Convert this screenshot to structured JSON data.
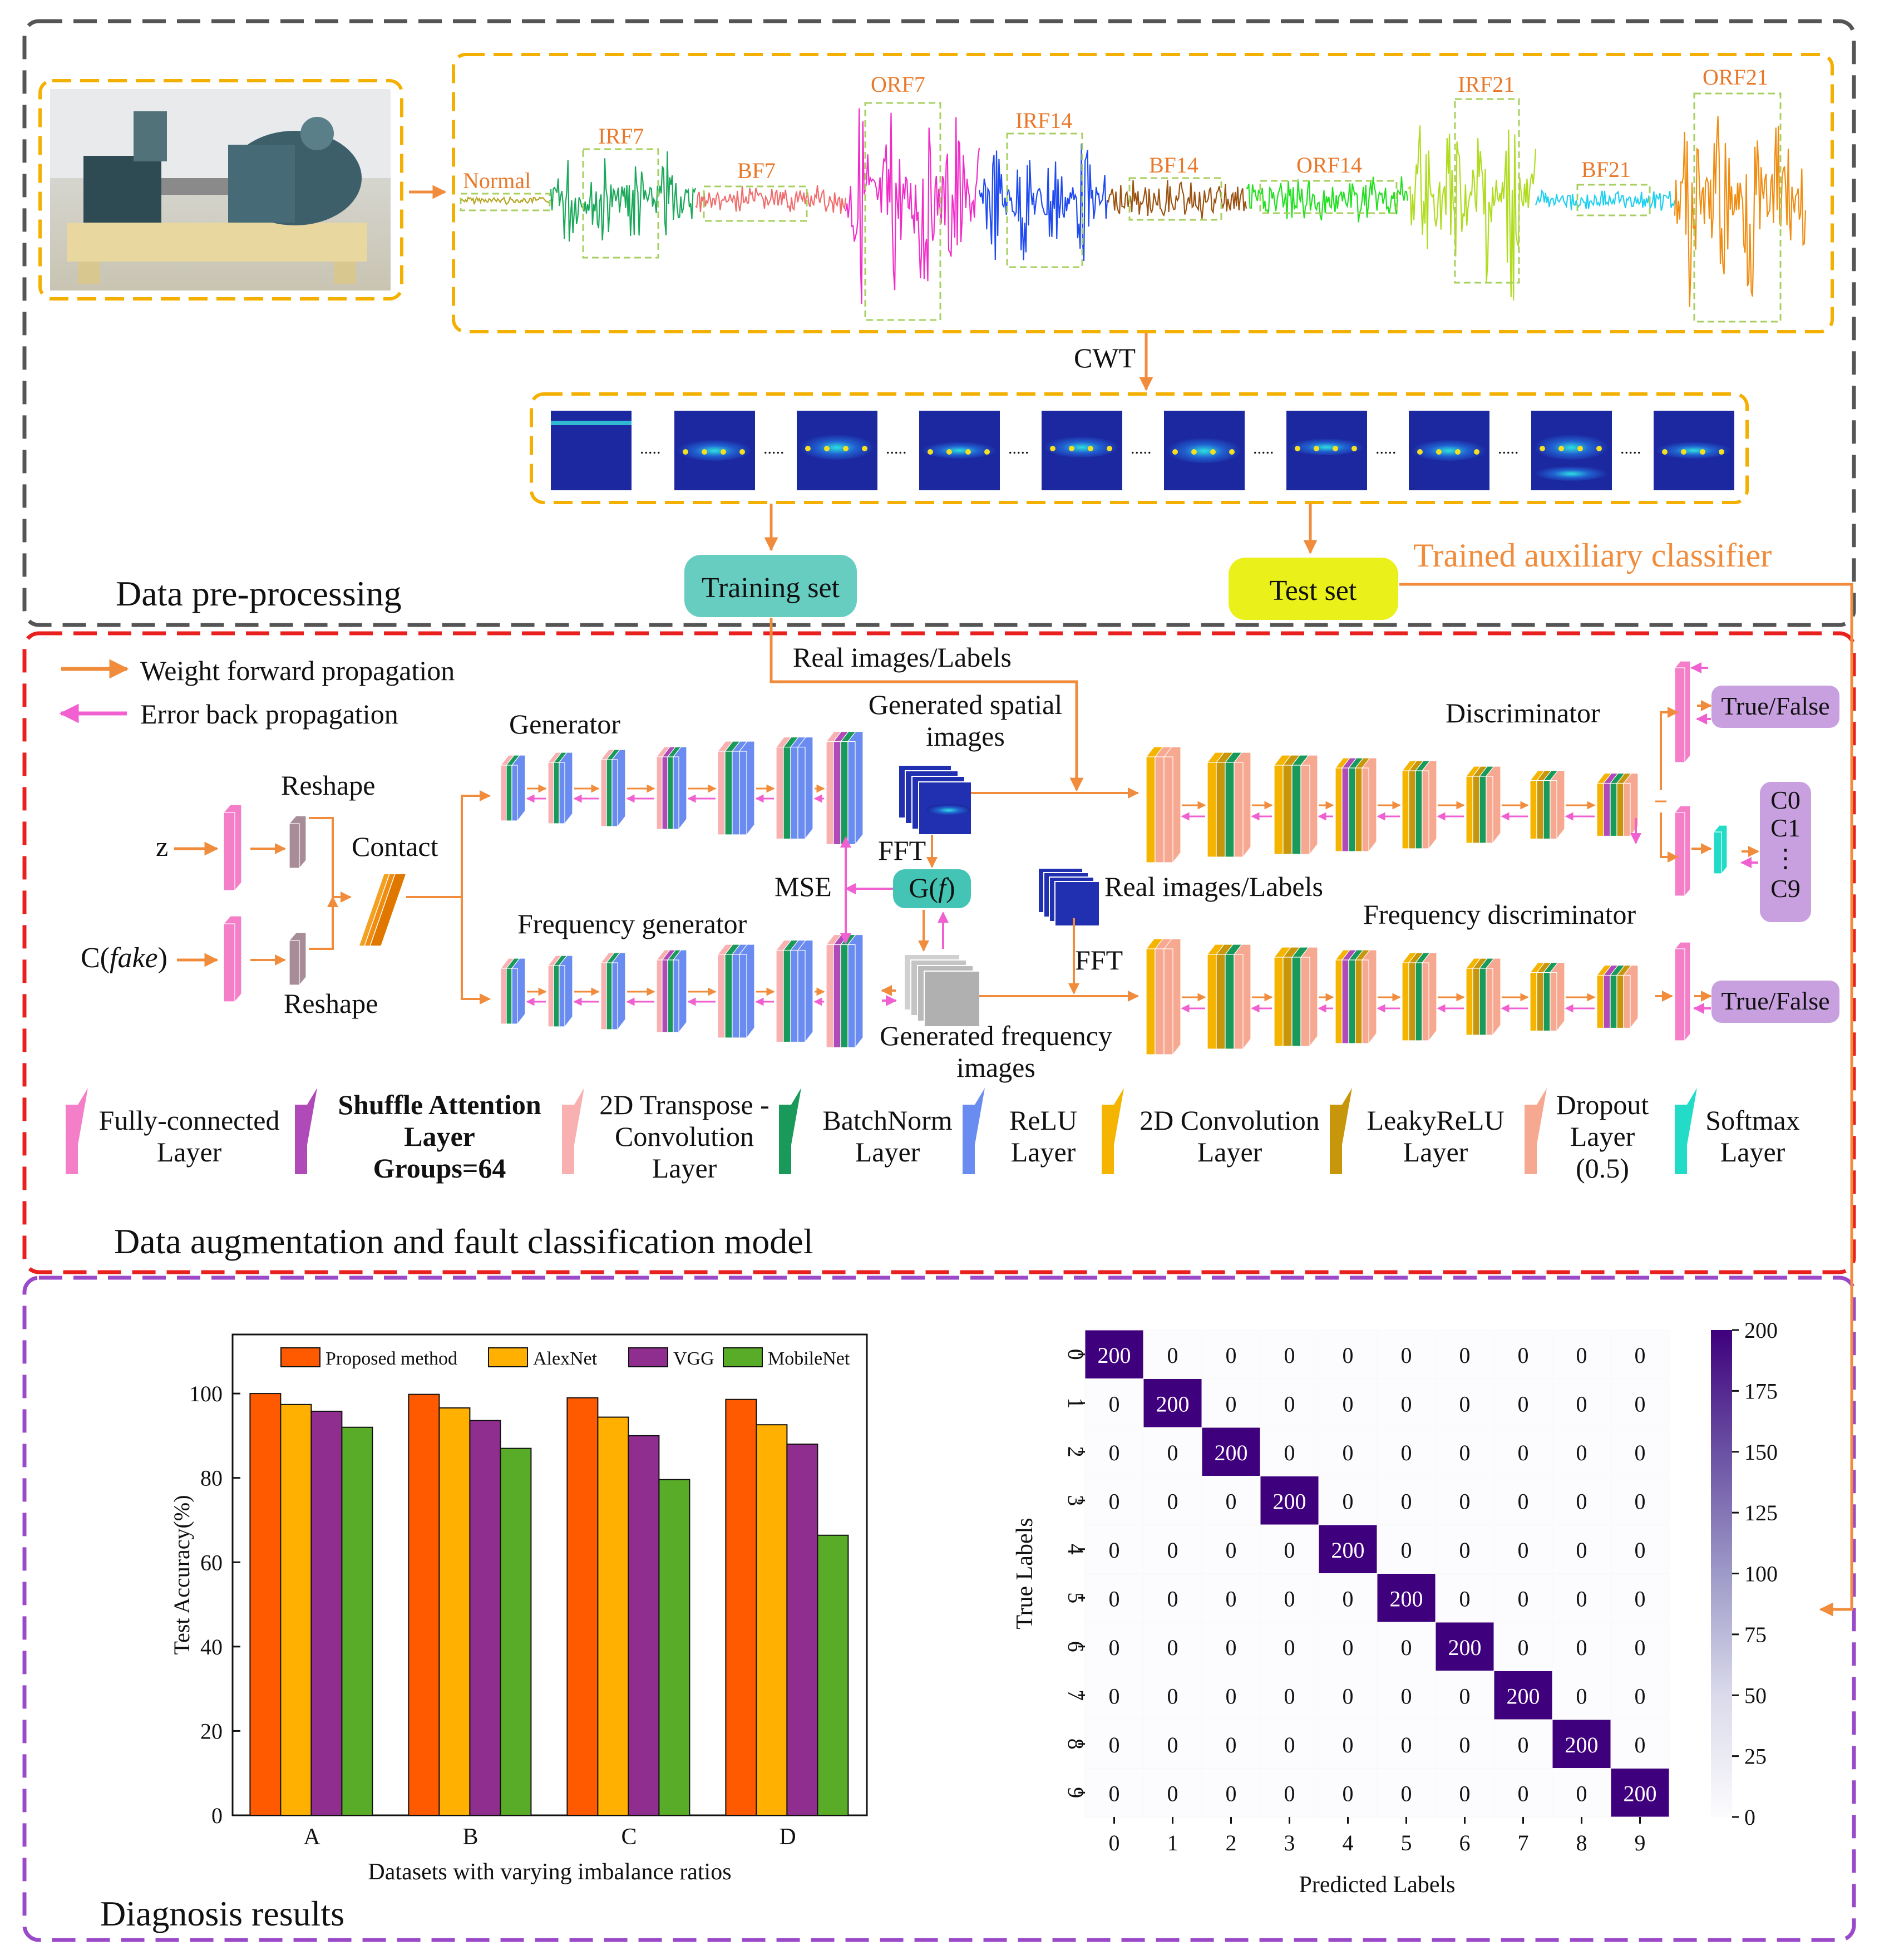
{
  "sections": {
    "preprocessing": "Data pre-processing",
    "augmentation": "Data  augmentation and fault classification model",
    "diagnosis": "Diagnosis results"
  },
  "signals": {
    "labels": [
      "Normal",
      "IRF7",
      "BF7",
      "ORF7",
      "IRF14",
      "BF14",
      "ORF14",
      "IRF21",
      "BF21",
      "ORF21"
    ],
    "colors": [
      "#b5a520",
      "#1aa85a",
      "#f06c6c",
      "#f02cc8",
      "#1e4af0",
      "#9a5210",
      "#22e020",
      "#b0dc20",
      "#1ed0f0",
      "#f08c10"
    ],
    "label_color": "#e8782a",
    "box_color": "#a8d060"
  },
  "cwt_label": "CWT",
  "training_set": "Training set",
  "test_set": "Test set",
  "trained_aux": "Trained auxiliary classifier",
  "legend_arrows": {
    "forward": "Weight forward propagation",
    "backward": "Error back propagation"
  },
  "net": {
    "real_labels_top": "Real images/Labels",
    "generator": "Generator",
    "gen_spatial": "Generated spatial images",
    "discriminator": "Discriminator",
    "true_false_1": "True/False",
    "true_false_2": "True/False",
    "classes": [
      "C0",
      "C1",
      "⋮",
      "C9"
    ],
    "reshape_1": "Reshape",
    "reshape_2": "Reshape",
    "z": "z",
    "c_fake_prefix": "C(",
    "c_fake_italic": "fake",
    "c_fake_suffix": ")",
    "contact": "Contact",
    "fft_1": "FFT",
    "mse": "MSE",
    "gf_prefix": "G(",
    "gf_italic": "f",
    "gf_suffix": ")",
    "real_labels_mid": "Real images/Labels",
    "fft_2": "FFT",
    "freq_gen": "Frequency generator",
    "freq_disc": "Frequency discriminator",
    "gen_freq": "Generated frequency images"
  },
  "layer_legend": [
    {
      "lines": [
        "Fully-connected",
        "Layer"
      ],
      "color": "#f47fc8",
      "bold": false
    },
    {
      "lines": [
        "Shuffle Attention",
        "Layer",
        "Groups=64"
      ],
      "color": "#b04ab8",
      "bold": true
    },
    {
      "lines": [
        "2D Transpose -",
        "Convolution",
        "Layer"
      ],
      "color": "#f8b0b0",
      "bold": false
    },
    {
      "lines": [
        "BatchNorm",
        "Layer"
      ],
      "color": "#1a9a5a",
      "bold": false
    },
    {
      "lines": [
        "ReLU",
        "Layer"
      ],
      "color": "#6a8cf0",
      "bold": false
    },
    {
      "lines": [
        "2D Convolution",
        "Layer"
      ],
      "color": "#f4b400",
      "bold": false
    },
    {
      "lines": [
        "LeakyReLU",
        "Layer"
      ],
      "color": "#c8960a",
      "bold": false
    },
    {
      "lines": [
        "Dropout",
        "Layer",
        "(0.5)"
      ],
      "color": "#f6a890",
      "bold": false
    },
    {
      "lines": [
        "Softmax",
        "Layer"
      ],
      "color": "#22dcc8",
      "bold": false
    }
  ],
  "bar_chart_data": {
    "type": "bar",
    "title": "",
    "categories": [
      "A",
      "B",
      "C",
      "D"
    ],
    "series": [
      {
        "name": "Proposed method",
        "values": [
          100,
          99.8,
          99,
          98.6
        ],
        "color": "#ff5a00"
      },
      {
        "name": "AlexNet",
        "values": [
          97.4,
          96.6,
          94.4,
          92.6
        ],
        "color": "#ffb000"
      },
      {
        "name": "VGG",
        "values": [
          95.8,
          93.6,
          90,
          88
        ],
        "color": "#902e90"
      },
      {
        "name": "MobileNet",
        "values": [
          92,
          87,
          79.6,
          66.4
        ],
        "color": "#58ac28"
      }
    ],
    "xlabel": "Datasets with varying imbalance ratios",
    "ylabel": "Test Accuracy(%)",
    "ylim": [
      0,
      114
    ],
    "yticks": [
      "0",
      "20",
      "40",
      "60",
      "80",
      "100"
    ]
  },
  "chart_data": {
    "type": "heatmap",
    "title": "",
    "xlabel": "Predicted Labels",
    "ylabel": "True Labels",
    "x_ticks": [
      "0",
      "1",
      "2",
      "3",
      "4",
      "5",
      "6",
      "7",
      "8",
      "9"
    ],
    "y_ticks": [
      "0",
      "1",
      "2",
      "3",
      "4",
      "5",
      "6",
      "7",
      "8",
      "9"
    ],
    "matrix": [
      [
        200,
        0,
        0,
        0,
        0,
        0,
        0,
        0,
        0,
        0
      ],
      [
        0,
        200,
        0,
        0,
        0,
        0,
        0,
        0,
        0,
        0
      ],
      [
        0,
        0,
        200,
        0,
        0,
        0,
        0,
        0,
        0,
        0
      ],
      [
        0,
        0,
        0,
        200,
        0,
        0,
        0,
        0,
        0,
        0
      ],
      [
        0,
        0,
        0,
        0,
        200,
        0,
        0,
        0,
        0,
        0
      ],
      [
        0,
        0,
        0,
        0,
        0,
        200,
        0,
        0,
        0,
        0
      ],
      [
        0,
        0,
        0,
        0,
        0,
        0,
        200,
        0,
        0,
        0
      ],
      [
        0,
        0,
        0,
        0,
        0,
        0,
        0,
        200,
        0,
        0
      ],
      [
        0,
        0,
        0,
        0,
        0,
        0,
        0,
        0,
        200,
        0
      ],
      [
        0,
        0,
        0,
        0,
        0,
        0,
        0,
        0,
        0,
        200
      ]
    ],
    "colorbar_ticks": [
      "0",
      "25",
      "50",
      "75",
      "100",
      "125",
      "150",
      "175",
      "200"
    ],
    "cmap_low": "#fcfbfd",
    "cmap_high": "#3f007d"
  }
}
